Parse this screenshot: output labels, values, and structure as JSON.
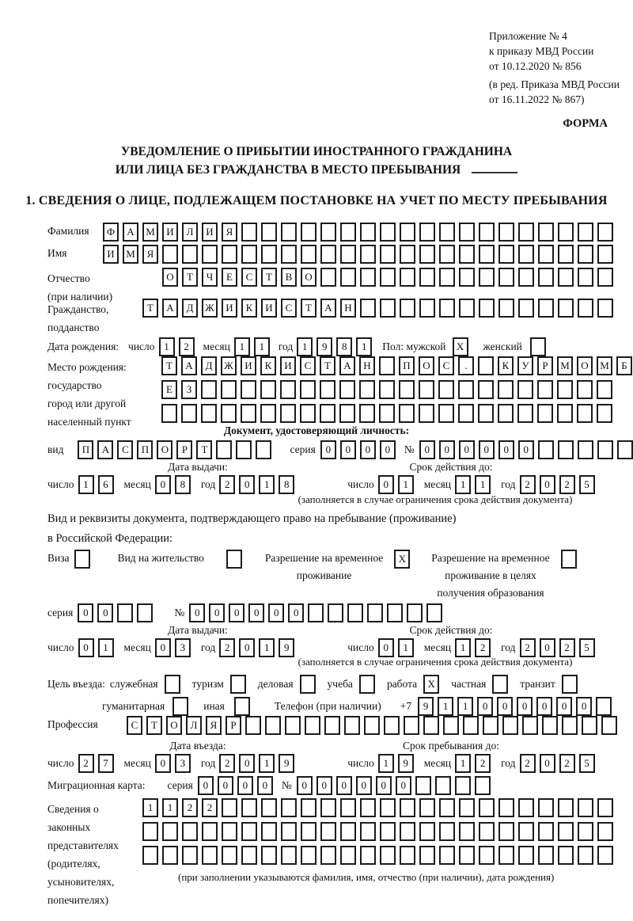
{
  "header": {
    "line1": "Приложение № 4",
    "line2": "к приказу МВД России",
    "line3": "от 10.12.2020 № 856",
    "line4": "(в ред. Приказа МВД России",
    "line5": "от 16.11.2022 № 867)",
    "forma": "ФОРМА"
  },
  "title": {
    "line1": "УВЕДОМЛЕНИЕ О ПРИБЫТИИ ИНОСТРАННОГО ГРАЖДАНИНА",
    "line2": "ИЛИ ЛИЦА БЕЗ ГРАЖДАНСТВА В МЕСТО ПРЕБЫВАНИЯ"
  },
  "section1_heading": "1. СВЕДЕНИЯ О ЛИЦЕ, ПОДЛЕЖАЩЕМ ПОСТАНОВКЕ НА УЧЕТ ПО МЕСТУ ПРЕБЫВАНИЯ",
  "date_labels": {
    "day": "число",
    "month": "месяц",
    "year": "год"
  },
  "fields": {
    "surname": {
      "label": "Фамилия",
      "cells": {
        "text": "ФАМИЛИЯ",
        "count": 26
      }
    },
    "given_name": {
      "label": "Имя",
      "cells": {
        "text": "ИМЯ",
        "count": 26
      }
    },
    "patronymic": {
      "label1": "Отчество",
      "label2": "(при наличии)",
      "cells": {
        "text": "ОТЧЕСТВО",
        "count": 23
      }
    },
    "citizenship": {
      "label1": "Гражданство,",
      "label2": "подданство",
      "cells": {
        "text": "ТАДЖИКИСТАН",
        "count": 24
      }
    },
    "birth_date": {
      "label": "Дата рождения:",
      "day": "12",
      "month": "11",
      "year": "1981",
      "sex_label": "Пол: мужской",
      "male": "X",
      "female_label": "женский",
      "female": ""
    },
    "birth_place": {
      "label1": "Место рождения:",
      "label2": "государство",
      "label3": "город или другой",
      "label4": "населенный пункт",
      "row1": {
        "text": "ТАДЖИКИСТАН ПОС. КУРМОМБ",
        "count": 24
      },
      "row2": {
        "text": "ЕЗ",
        "count": 23
      },
      "row3": {
        "text": "",
        "count": 23
      }
    },
    "identity_doc": {
      "heading": "Документ, удостоверяющий личность:",
      "kind_label": "вид",
      "kind": {
        "text": "ПАСПОРТ",
        "count": 10
      },
      "series_label": "серия",
      "series": {
        "text": "0000",
        "count": 4
      },
      "number_label": "№",
      "number": {
        "text": "000000",
        "count": 11
      },
      "issue_label": "Дата выдачи:",
      "issue": {
        "day": "16",
        "month": "08",
        "year": "2018"
      },
      "expiry_label": "Срок действия до:",
      "expiry": {
        "day": "01",
        "month": "11",
        "year": "2025"
      },
      "note": "(заполняется в случае ограничения срока действия документа)"
    },
    "residence_doc": {
      "line1": "Вид и реквизиты документа, подтверждающего право на пребывание (проживание)",
      "line2": "в Российской Федерации:",
      "opt_visa": {
        "label": "Виза",
        "checked": ""
      },
      "opt_residence_permit": {
        "label": "Вид на жительство",
        "checked": ""
      },
      "opt_temp_residence": {
        "label1": "Разрешение на временное",
        "label2": "проживание",
        "checked": "X"
      },
      "opt_temp_residence_edu": {
        "label1": "Разрешение на временное",
        "label2": "проживание в целях",
        "label3": "получения образования",
        "checked": ""
      },
      "series_label": "серия",
      "series": {
        "text": "00",
        "count": 4
      },
      "number_label": "№",
      "number": {
        "text": "000000",
        "count": 13
      },
      "issue_label": "Дата выдачи:",
      "issue": {
        "day": "01",
        "month": "03",
        "year": "2019"
      },
      "expiry_label": "Срок действия до:",
      "expiry": {
        "day": "01",
        "month": "12",
        "year": "2025"
      },
      "note": "(заполняется в случае ограничения срока действия документа)"
    },
    "visit_purpose": {
      "label": "Цель въезда:",
      "opt1": {
        "label": "служебная",
        "checked": ""
      },
      "opt2": {
        "label": "туризм",
        "checked": ""
      },
      "opt3": {
        "label": "деловая",
        "checked": ""
      },
      "opt4": {
        "label": "учеба",
        "checked": ""
      },
      "opt5": {
        "label": "работа",
        "checked": "X"
      },
      "opt6": {
        "label": "частная",
        "checked": ""
      },
      "opt7": {
        "label": "транзит",
        "checked": ""
      },
      "opt8": {
        "label": "гуманитарная",
        "checked": ""
      },
      "opt9": {
        "label": "иная",
        "checked": ""
      },
      "phone_label": "Телефон (при наличии)",
      "phone_prefix": "+7",
      "phone": {
        "text": "911000000",
        "count": 10
      }
    },
    "profession": {
      "label": "Профессия",
      "cells": {
        "text": "СТОЛЯР",
        "count": 25
      }
    },
    "entry_dates": {
      "entry_label": "Дата въезда:",
      "entry": {
        "day": "27",
        "month": "03",
        "year": "2019"
      },
      "stay_label": "Срок пребывания до:",
      "stay": {
        "day": "19",
        "month": "12",
        "year": "2025"
      }
    },
    "migration_card": {
      "label": "Миграционная карта:",
      "series_label": "серия",
      "series": {
        "text": "0000",
        "count": 4
      },
      "number_label": "№",
      "number": {
        "text": "000000",
        "count": 10
      }
    },
    "legal_reps": {
      "label1": "Сведения о",
      "label2": "законных",
      "label3": "представителях",
      "label4": "(родителях,",
      "label5": "усыновителях,",
      "label6": "попечителях)",
      "row1": {
        "text": "1122",
        "count": 24
      },
      "row2": {
        "text": "",
        "count": 24
      },
      "row3": {
        "text": "",
        "count": 24
      },
      "note": "(при заполнении указываются фамилия, имя, отчество (при наличии), дата рождения)"
    }
  }
}
